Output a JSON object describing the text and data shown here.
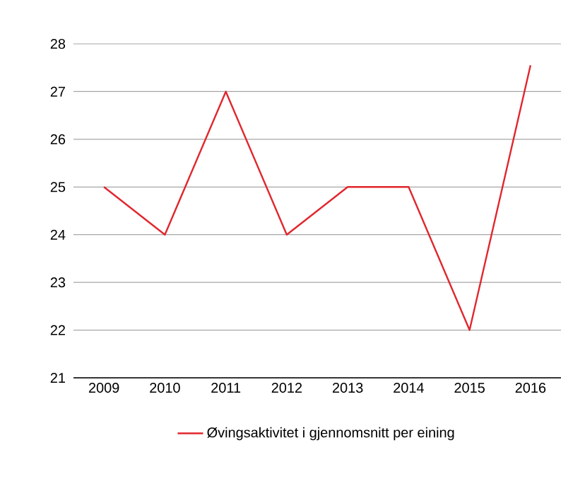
{
  "chart_data": {
    "type": "line",
    "categories": [
      "2009",
      "2010",
      "2011",
      "2012",
      "2013",
      "2014",
      "2015",
      "2016"
    ],
    "series": [
      {
        "name": "Øvingsaktivitet i gjennomsnitt per eining",
        "color": "#e1262d",
        "values": [
          25,
          24,
          27,
          24,
          25,
          25,
          22,
          27.55
        ]
      }
    ],
    "ylim": [
      21,
      28
    ],
    "yticks": [
      21,
      22,
      23,
      24,
      25,
      26,
      27,
      28
    ],
    "grid": "y",
    "legend": "bottom",
    "marker": "none",
    "line_style": "solid"
  }
}
